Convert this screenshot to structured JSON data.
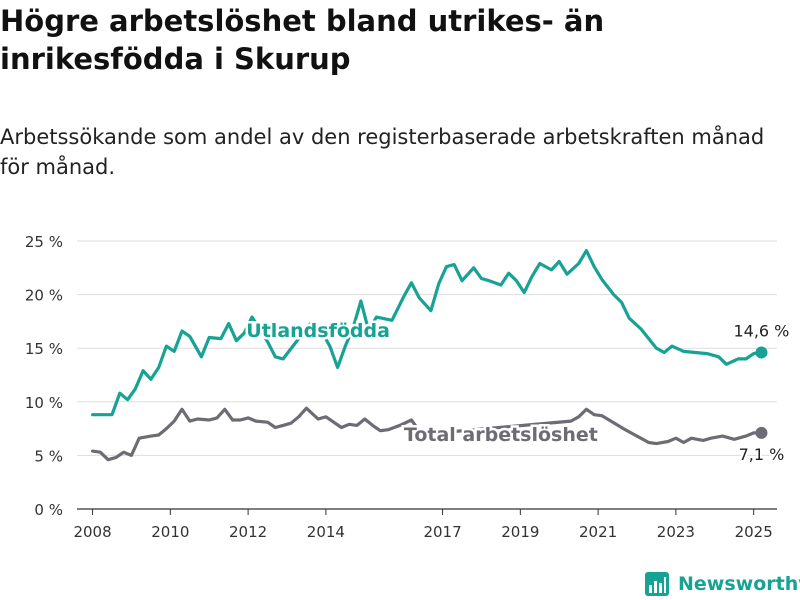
{
  "title": "Högre arbetslöshet bland utrikes- än inrikesfödda i Skurup",
  "subtitle": "Arbetssökande som andel av den registerbaserade arbetskraften månad för månad.",
  "brand": "Newsworthy",
  "colors": {
    "utlandsfodda": "#16a394",
    "total": "#6e6b75",
    "grid": "#dddddd",
    "axis": "#333333",
    "brand": "#16a394"
  },
  "chart_data": {
    "type": "line",
    "title": "Högre arbetslöshet bland utrikes- än inrikesfödda i Skurup",
    "subtitle": "Arbetssökande som andel av den registerbaserade arbetskraften månad för månad.",
    "xlabel": "",
    "ylabel": "",
    "xlim": [
      2007.6,
      2025.6
    ],
    "ylim": [
      0,
      25
    ],
    "yticks": [
      0,
      5,
      10,
      15,
      20,
      25
    ],
    "ytick_labels": [
      "0 %",
      "5 %",
      "10 %",
      "15 %",
      "20 %",
      "25 %"
    ],
    "xticks": [
      2008,
      2010,
      2012,
      2014,
      2017,
      2019,
      2021,
      2023,
      2025
    ],
    "xtick_labels": [
      "2008",
      "2010",
      "2012",
      "2014",
      "2017",
      "2019",
      "2021",
      "2023",
      "2025"
    ],
    "grid": true,
    "series": [
      {
        "name": "Utlandsfödda",
        "key": "utlandsfodda",
        "end_label": "14,6 %",
        "points": [
          [
            2008.0,
            8.8
          ],
          [
            2008.3,
            8.8
          ],
          [
            2008.5,
            8.8
          ],
          [
            2008.7,
            10.8
          ],
          [
            2008.9,
            10.2
          ],
          [
            2009.1,
            11.2
          ],
          [
            2009.3,
            12.9
          ],
          [
            2009.5,
            12.1
          ],
          [
            2009.7,
            13.2
          ],
          [
            2009.9,
            15.2
          ],
          [
            2010.1,
            14.7
          ],
          [
            2010.3,
            16.6
          ],
          [
            2010.5,
            16.1
          ],
          [
            2010.8,
            14.2
          ],
          [
            2011.0,
            16.0
          ],
          [
            2011.3,
            15.9
          ],
          [
            2011.5,
            17.3
          ],
          [
            2011.7,
            15.7
          ],
          [
            2011.9,
            16.4
          ],
          [
            2012.1,
            17.9
          ],
          [
            2012.3,
            16.8
          ],
          [
            2012.5,
            15.6
          ],
          [
            2012.7,
            14.2
          ],
          [
            2012.9,
            14.0
          ],
          [
            2013.6,
            17.3
          ],
          [
            2013.9,
            16.5
          ],
          [
            2014.1,
            15.2
          ],
          [
            2014.3,
            13.2
          ],
          [
            2014.5,
            15.2
          ],
          [
            2014.7,
            16.9
          ],
          [
            2014.9,
            19.4
          ],
          [
            2015.1,
            16.6
          ],
          [
            2015.3,
            17.9
          ],
          [
            2015.7,
            17.6
          ],
          [
            2016.0,
            19.8
          ],
          [
            2016.2,
            21.1
          ],
          [
            2016.4,
            19.7
          ],
          [
            2016.7,
            18.5
          ],
          [
            2016.9,
            21.0
          ],
          [
            2017.1,
            22.6
          ],
          [
            2017.3,
            22.8
          ],
          [
            2017.5,
            21.3
          ],
          [
            2017.8,
            22.5
          ],
          [
            2018.0,
            21.5
          ],
          [
            2018.2,
            21.3
          ],
          [
            2018.5,
            20.9
          ],
          [
            2018.7,
            22.0
          ],
          [
            2018.9,
            21.3
          ],
          [
            2019.1,
            20.2
          ],
          [
            2019.3,
            21.7
          ],
          [
            2019.5,
            22.9
          ],
          [
            2019.8,
            22.3
          ],
          [
            2020.0,
            23.1
          ],
          [
            2020.2,
            21.9
          ],
          [
            2020.5,
            22.9
          ],
          [
            2020.7,
            24.1
          ],
          [
            2020.9,
            22.6
          ],
          [
            2021.1,
            21.4
          ],
          [
            2021.4,
            20.0
          ],
          [
            2021.6,
            19.3
          ],
          [
            2021.8,
            17.8
          ],
          [
            2022.1,
            16.8
          ],
          [
            2022.3,
            15.9
          ],
          [
            2022.5,
            15.0
          ],
          [
            2022.7,
            14.6
          ],
          [
            2022.9,
            15.2
          ],
          [
            2023.2,
            14.7
          ],
          [
            2023.5,
            14.6
          ],
          [
            2023.8,
            14.5
          ],
          [
            2024.1,
            14.2
          ],
          [
            2024.3,
            13.5
          ],
          [
            2024.6,
            14.0
          ],
          [
            2024.8,
            14.0
          ],
          [
            2025.0,
            14.5
          ],
          [
            2025.2,
            14.6
          ]
        ]
      },
      {
        "name": "Total arbetslöshet",
        "key": "total",
        "end_label": "7,1 %",
        "points": [
          [
            2008.0,
            5.4
          ],
          [
            2008.2,
            5.3
          ],
          [
            2008.4,
            4.6
          ],
          [
            2008.6,
            4.8
          ],
          [
            2008.8,
            5.3
          ],
          [
            2009.0,
            5.0
          ],
          [
            2009.2,
            6.6
          ],
          [
            2009.5,
            6.8
          ],
          [
            2009.7,
            6.9
          ],
          [
            2009.9,
            7.5
          ],
          [
            2010.1,
            8.2
          ],
          [
            2010.3,
            9.3
          ],
          [
            2010.5,
            8.2
          ],
          [
            2010.7,
            8.4
          ],
          [
            2011.0,
            8.3
          ],
          [
            2011.2,
            8.5
          ],
          [
            2011.4,
            9.3
          ],
          [
            2011.6,
            8.3
          ],
          [
            2011.8,
            8.3
          ],
          [
            2012.0,
            8.5
          ],
          [
            2012.2,
            8.2
          ],
          [
            2012.5,
            8.1
          ],
          [
            2012.7,
            7.6
          ],
          [
            2012.9,
            7.8
          ],
          [
            2013.1,
            8.0
          ],
          [
            2013.3,
            8.6
          ],
          [
            2013.5,
            9.4
          ],
          [
            2013.8,
            8.4
          ],
          [
            2014.0,
            8.6
          ],
          [
            2014.2,
            8.1
          ],
          [
            2014.4,
            7.6
          ],
          [
            2014.6,
            7.9
          ],
          [
            2014.8,
            7.8
          ],
          [
            2015.0,
            8.4
          ],
          [
            2015.2,
            7.8
          ],
          [
            2015.4,
            7.3
          ],
          [
            2015.6,
            7.4
          ],
          [
            2015.9,
            7.8
          ],
          [
            2016.2,
            8.3
          ],
          [
            2016.4,
            7.3
          ],
          [
            2016.6,
            6.9
          ],
          [
            2016.9,
            7.1
          ],
          [
            2020.3,
            8.2
          ],
          [
            2020.5,
            8.6
          ],
          [
            2020.7,
            9.3
          ],
          [
            2020.9,
            8.8
          ],
          [
            2021.1,
            8.7
          ],
          [
            2021.7,
            7.4
          ],
          [
            2021.9,
            7.0
          ],
          [
            2022.1,
            6.6
          ],
          [
            2022.3,
            6.2
          ],
          [
            2022.5,
            6.1
          ],
          [
            2022.8,
            6.3
          ],
          [
            2023.0,
            6.6
          ],
          [
            2023.2,
            6.2
          ],
          [
            2023.4,
            6.6
          ],
          [
            2023.7,
            6.4
          ],
          [
            2023.9,
            6.6
          ],
          [
            2024.2,
            6.8
          ],
          [
            2024.5,
            6.5
          ],
          [
            2024.8,
            6.8
          ],
          [
            2025.0,
            7.1
          ],
          [
            2025.2,
            7.1
          ]
        ]
      }
    ],
    "annotations": [
      {
        "text": "Utlandsfödda",
        "series": "utlandsfodda",
        "x": 2013.8,
        "y": 16.7
      },
      {
        "text": "Total arbetslöshet",
        "series": "total",
        "x": 2018.5,
        "y": 7.0
      }
    ]
  }
}
